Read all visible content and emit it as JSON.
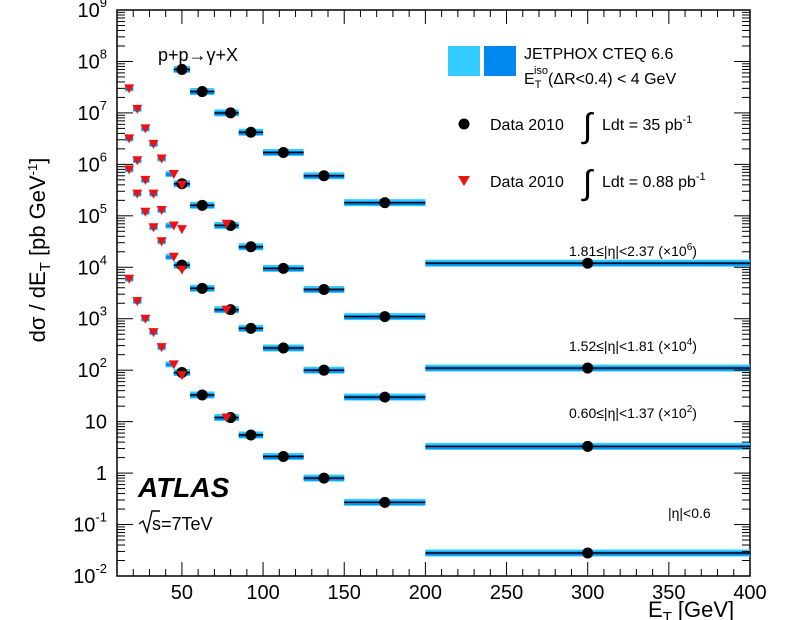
{
  "chart_data": {
    "type": "scatter",
    "log_y": true,
    "xlim": [
      10,
      400
    ],
    "ylim": [
      0.01,
      1000000000
    ],
    "xlabel": "E",
    "xlabel_sub": "T",
    "xlabel_unit": "[GeV]",
    "ylabel_parts": [
      "dσ / dE",
      "T",
      " [pb GeV",
      "-1",
      "]"
    ],
    "x_ticks": [
      50,
      100,
      150,
      200,
      250,
      300,
      350,
      400
    ],
    "y_ticks": [
      {
        "value": 0.01,
        "base": "10",
        "exp": "-2"
      },
      {
        "value": 0.1,
        "base": "10",
        "exp": "-1"
      },
      {
        "value": 1,
        "base": "1",
        "exp": ""
      },
      {
        "value": 10,
        "base": "10",
        "exp": ""
      },
      {
        "value": 100.0,
        "base": "10",
        "exp": "2"
      },
      {
        "value": 1000.0,
        "base": "10",
        "exp": "3"
      },
      {
        "value": 10000.0,
        "base": "10",
        "exp": "4"
      },
      {
        "value": 100000.0,
        "base": "10",
        "exp": "5"
      },
      {
        "value": 1000000.0,
        "base": "10",
        "exp": "6"
      },
      {
        "value": 10000000.0,
        "base": "10",
        "exp": "7"
      },
      {
        "value": 100000000.0,
        "base": "10",
        "exp": "8"
      },
      {
        "value": 1000000000.0,
        "base": "10",
        "exp": "9"
      }
    ],
    "annotations": {
      "process": "p+p→γ+X",
      "experiment": "ATLAS",
      "energy": "s=7TeV",
      "region_labels": [
        {
          "text": "1.81≤|η|<2.37 (×10",
          "exp": "6",
          "tail": ")"
        },
        {
          "text": "1.52≤|η|<1.81 (×10",
          "exp": "4",
          "tail": ")"
        },
        {
          "text": "0.60≤|η|<1.37 (×10",
          "exp": "2",
          "tail": ")"
        },
        {
          "text": "|η|<0.6",
          "exp": "",
          "tail": ""
        }
      ]
    },
    "legend": {
      "theory": {
        "line1": "JETPHOX CTEQ 6.6",
        "line2_prefix": "E",
        "line2_sub": "T",
        "line2_sup": "iso",
        "line2_rest": "(ΔR<0.4) < 4 GeV"
      },
      "data35": {
        "prefix": "Data 2010",
        "integral": "∫",
        "text": "Ldt = 35 pb",
        "sup": "-1"
      },
      "data088": {
        "prefix": "Data 2010",
        "integral": "∫",
        "text": "Ldt = 0.88 pb",
        "sup": "-1"
      }
    },
    "colors": {
      "theory_light": "#33ccff",
      "theory_dark": "#0088ee",
      "data35": "#000000",
      "data088": "#ee1111"
    },
    "series": [
      {
        "region": "|η|<0.6",
        "data35": [
          {
            "x": 50,
            "xlo": 45,
            "xhi": 55,
            "y": 90
          },
          {
            "x": 62.5,
            "xlo": 55,
            "xhi": 70,
            "y": 33
          },
          {
            "x": 80,
            "xlo": 70,
            "xhi": 85,
            "y": 12
          },
          {
            "x": 92.5,
            "xlo": 85,
            "xhi": 100,
            "y": 5.5
          },
          {
            "x": 112.5,
            "xlo": 100,
            "xhi": 125,
            "y": 2.1
          },
          {
            "x": 137.5,
            "xlo": 125,
            "xhi": 150,
            "y": 0.8
          },
          {
            "x": 175,
            "xlo": 150,
            "xhi": 200,
            "y": 0.27
          },
          {
            "x": 300,
            "xlo": 200,
            "xhi": 400,
            "y": 0.028
          }
        ],
        "data088": [
          {
            "x": 17.5,
            "y": 6000
          },
          {
            "x": 22.5,
            "y": 2200
          },
          {
            "x": 27.5,
            "y": 1000
          },
          {
            "x": 32.5,
            "y": 550
          },
          {
            "x": 37.5,
            "y": 280
          },
          {
            "x": 45,
            "y": 130
          },
          {
            "x": 50,
            "y": 80
          },
          {
            "x": 77.5,
            "y": 12
          }
        ]
      },
      {
        "region": "0.60≤|η|<1.37",
        "data35": [
          {
            "x": 50,
            "xlo": 45,
            "xhi": 55,
            "y": 11000
          },
          {
            "x": 62.5,
            "xlo": 55,
            "xhi": 70,
            "y": 3900
          },
          {
            "x": 80,
            "xlo": 70,
            "xhi": 85,
            "y": 1500
          },
          {
            "x": 92.5,
            "xlo": 85,
            "xhi": 100,
            "y": 650
          },
          {
            "x": 112.5,
            "xlo": 100,
            "xhi": 125,
            "y": 270
          },
          {
            "x": 137.5,
            "xlo": 125,
            "xhi": 150,
            "y": 100
          },
          {
            "x": 175,
            "xlo": 150,
            "xhi": 200,
            "y": 30
          },
          {
            "x": 300,
            "xlo": 200,
            "xhi": 400,
            "y": 3.3
          }
        ],
        "data088": [
          {
            "x": 17.5,
            "y": 800000
          },
          {
            "x": 22.5,
            "y": 270000
          },
          {
            "x": 27.5,
            "y": 120000
          },
          {
            "x": 32.5,
            "y": 60000
          },
          {
            "x": 37.5,
            "y": 32000
          },
          {
            "x": 45,
            "y": 16000
          },
          {
            "x": 50,
            "y": 9000
          },
          {
            "x": 77.5,
            "y": 1500
          }
        ]
      },
      {
        "region": "1.52≤|η|<1.81",
        "data35": [
          {
            "x": 50,
            "xlo": 45,
            "xhi": 55,
            "y": 420000
          },
          {
            "x": 62.5,
            "xlo": 55,
            "xhi": 70,
            "y": 160000
          },
          {
            "x": 80,
            "xlo": 70,
            "xhi": 85,
            "y": 65000
          },
          {
            "x": 92.5,
            "xlo": 85,
            "xhi": 100,
            "y": 25000
          },
          {
            "x": 112.5,
            "xlo": 100,
            "xhi": 125,
            "y": 9500
          },
          {
            "x": 137.5,
            "xlo": 125,
            "xhi": 150,
            "y": 3700
          },
          {
            "x": 175,
            "xlo": 150,
            "xhi": 200,
            "y": 1100
          },
          {
            "x": 300,
            "xlo": 200,
            "xhi": 400,
            "y": 110
          }
        ],
        "data088": [
          {
            "x": 17.5,
            "y": 3200000
          },
          {
            "x": 22.5,
            "y": 1200000
          },
          {
            "x": 27.5,
            "y": 500000
          },
          {
            "x": 32.5,
            "y": 270000
          },
          {
            "x": 37.5,
            "y": 130000
          },
          {
            "x": 45,
            "y": 65000
          },
          {
            "x": 50,
            "y": 55000
          },
          {
            "x": 77.5,
            "y": 70000
          }
        ]
      },
      {
        "region": "1.81≤|η|<2.37",
        "data35": [
          {
            "x": 50,
            "xlo": 45,
            "xhi": 55,
            "y": 70000000
          },
          {
            "x": 62.5,
            "xlo": 55,
            "xhi": 70,
            "y": 26000000
          },
          {
            "x": 80,
            "xlo": 70,
            "xhi": 85,
            "y": 10000000
          },
          {
            "x": 92.5,
            "xlo": 85,
            "xhi": 100,
            "y": 4200000
          },
          {
            "x": 112.5,
            "xlo": 100,
            "xhi": 125,
            "y": 1700000
          },
          {
            "x": 137.5,
            "xlo": 125,
            "xhi": 150,
            "y": 600000
          },
          {
            "x": 175,
            "xlo": 150,
            "xhi": 200,
            "y": 180000
          },
          {
            "x": 300,
            "xlo": 200,
            "xhi": 400,
            "y": 12000
          }
        ],
        "data088": [
          {
            "x": 17.5,
            "y": 30000000
          },
          {
            "x": 22.5,
            "y": 12000000
          },
          {
            "x": 27.5,
            "y": 5000000
          },
          {
            "x": 32.5,
            "y": 2500000
          },
          {
            "x": 37.5,
            "y": 1300000
          },
          {
            "x": 45,
            "y": 650000
          },
          {
            "x": 50,
            "y": 400000
          }
        ]
      }
    ],
    "theory_low_bins": [
      {
        "xlo": 15,
        "xhi": 20
      },
      {
        "xlo": 20,
        "xhi": 25
      },
      {
        "xlo": 25,
        "xhi": 30
      },
      {
        "xlo": 30,
        "xhi": 35
      },
      {
        "xlo": 35,
        "xhi": 40
      },
      {
        "xlo": 40,
        "xhi": 45
      }
    ]
  }
}
